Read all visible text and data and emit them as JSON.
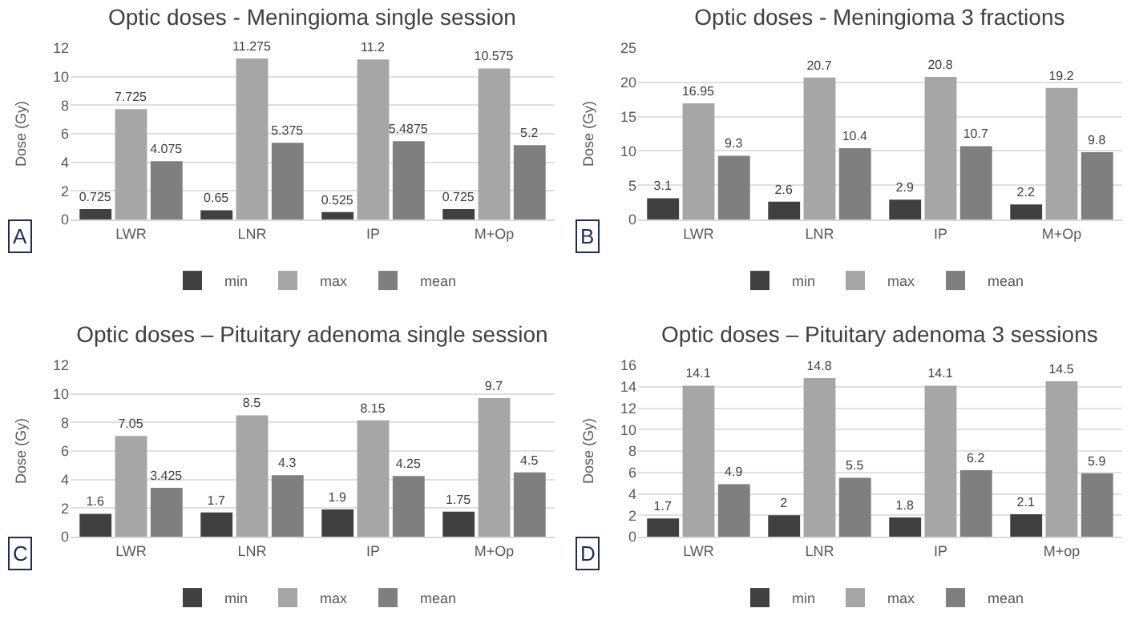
{
  "chart_data": [
    {
      "type": "bar",
      "title": "Optic doses - Meningioma single session",
      "ylabel": "Dose (Gy)",
      "categories": [
        "LWR",
        "LNR",
        "IP",
        "M+Op"
      ],
      "series": [
        {
          "name": "min",
          "color": "#404040",
          "values": [
            0.725,
            0.65,
            0.525,
            0.725
          ]
        },
        {
          "name": "max",
          "color": "#a6a6a6",
          "values": [
            7.725,
            11.275,
            11.2,
            10.575
          ]
        },
        {
          "name": "mean",
          "color": "#7f7f7f",
          "values": [
            4.075,
            5.375,
            5.4875,
            5.2
          ]
        }
      ],
      "ylim": [
        0,
        12
      ],
      "yticks": [
        0,
        2,
        4,
        6,
        8,
        10,
        12
      ],
      "grid": "y",
      "legend": "bottom",
      "data_labels": true,
      "annotations": [
        "A"
      ]
    },
    {
      "type": "bar",
      "title": "Optic doses - Meningioma 3 fractions",
      "ylabel": "Dose (Gy)",
      "categories": [
        "LWR",
        "LNR",
        "IP",
        "M+Op"
      ],
      "series": [
        {
          "name": "min",
          "color": "#404040",
          "values": [
            3.1,
            2.6,
            2.9,
            2.2
          ]
        },
        {
          "name": "max",
          "color": "#a6a6a6",
          "values": [
            16.95,
            20.7,
            20.8,
            19.2
          ]
        },
        {
          "name": "mean",
          "color": "#7f7f7f",
          "values": [
            9.3,
            10.4,
            10.7,
            9.8
          ]
        }
      ],
      "ylim": [
        0,
        25
      ],
      "yticks": [
        0,
        5,
        10,
        15,
        20,
        25
      ],
      "grid": "y",
      "legend": "bottom",
      "data_labels": true,
      "annotations": [
        "B"
      ]
    },
    {
      "type": "bar",
      "title": "Optic doses – Pituitary adenoma single session",
      "ylabel": "Dose (Gy)",
      "categories": [
        "LWR",
        "LNR",
        "IP",
        "M+Op"
      ],
      "series": [
        {
          "name": "min",
          "color": "#404040",
          "values": [
            1.6,
            1.7,
            1.9,
            1.75
          ]
        },
        {
          "name": "max",
          "color": "#a6a6a6",
          "values": [
            7.05,
            8.5,
            8.15,
            9.7
          ]
        },
        {
          "name": "mean",
          "color": "#7f7f7f",
          "values": [
            3.425,
            4.3,
            4.25,
            4.5
          ]
        }
      ],
      "ylim": [
        0,
        12
      ],
      "yticks": [
        0,
        2,
        4,
        6,
        8,
        10,
        12
      ],
      "grid": "y",
      "legend": "bottom",
      "data_labels": true,
      "annotations": [
        "C"
      ]
    },
    {
      "type": "bar",
      "title": "Optic doses – Pituitary adenoma 3 sessions",
      "ylabel": "Dose (Gy)",
      "categories": [
        "LWR",
        "LNR",
        "IP",
        "M+op"
      ],
      "series": [
        {
          "name": "min",
          "color": "#404040",
          "values": [
            1.7,
            2,
            1.8,
            2.1
          ]
        },
        {
          "name": "max",
          "color": "#a6a6a6",
          "values": [
            14.1,
            14.8,
            14.1,
            14.5
          ]
        },
        {
          "name": "mean",
          "color": "#7f7f7f",
          "values": [
            4.9,
            5.5,
            6.2,
            5.9
          ]
        }
      ],
      "ylim": [
        0,
        16
      ],
      "yticks": [
        0,
        2,
        4,
        6,
        8,
        10,
        12,
        14,
        16
      ],
      "grid": "y",
      "legend": "bottom",
      "data_labels": true,
      "annotations": [
        "D"
      ]
    }
  ]
}
